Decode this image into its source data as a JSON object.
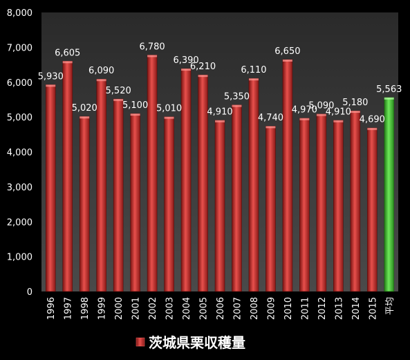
{
  "chart_data": {
    "type": "bar",
    "title": "",
    "xlabel": "",
    "ylabel": "",
    "ylim": [
      0,
      8000
    ],
    "y_ticks": [
      "0",
      "1,000",
      "2,000",
      "3,000",
      "4,000",
      "5,000",
      "6,000",
      "7,000",
      "8,000"
    ],
    "y_tick_values": [
      0,
      1000,
      2000,
      3000,
      4000,
      5000,
      6000,
      7000,
      8000
    ],
    "categories": [
      "1996",
      "1997",
      "1998",
      "1999",
      "2000",
      "2001",
      "2002",
      "2003",
      "2004",
      "2005",
      "2006",
      "2007",
      "2008",
      "2009",
      "2010",
      "2011",
      "2012",
      "2013",
      "2014",
      "2015",
      "平均"
    ],
    "series": [
      {
        "name": "茨城県栗収穫量",
        "values": [
          5930,
          6605,
          5020,
          6090,
          5520,
          5100,
          6780,
          5010,
          6390,
          6210,
          4910,
          5350,
          6110,
          4740,
          6650,
          4970,
          5090,
          4910,
          5180,
          4690,
          5563
        ],
        "labels": [
          "5,930",
          "6,605",
          "5,020",
          "6,090",
          "5,520",
          "5,100",
          "6,780",
          "5,010",
          "6,390",
          "6,210",
          "4,910",
          "5,350",
          "6,110",
          "4,740",
          "6,650",
          "4,970",
          "5,090",
          "4,910",
          "5,180",
          "4,690",
          "5,563"
        ]
      }
    ],
    "highlight_category": "平均",
    "grid": false,
    "legend_position": "bottom",
    "colors": {
      "page_background": "#000000",
      "plot_background": "#3a3a3a",
      "bar": "#c0302c",
      "bar_highlight": "#44bb33",
      "text": "#ffffff"
    }
  }
}
